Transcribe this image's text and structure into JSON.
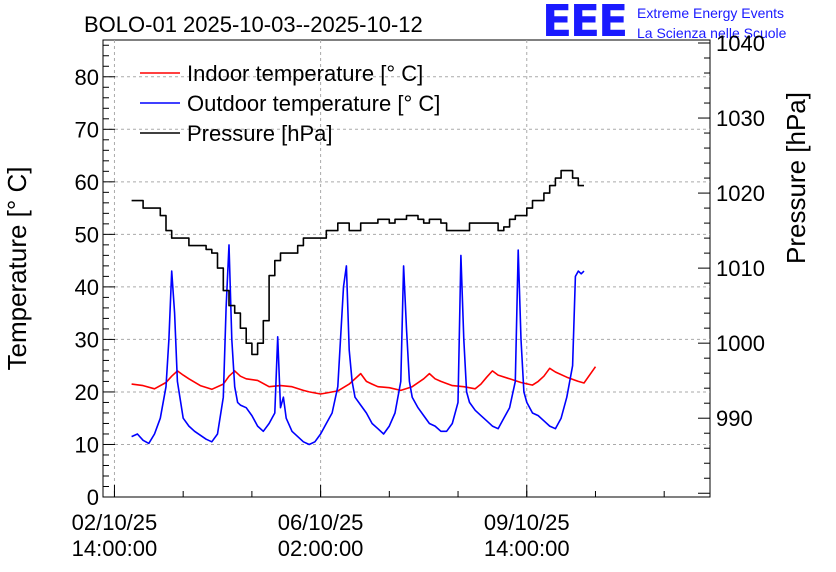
{
  "header": {
    "title": "BOLO-01 2025-10-03--2025-10-12",
    "logo_text": "EEE",
    "logo_line1": "Extreme Energy Events",
    "logo_line2": "La Scienza nelle Scuole"
  },
  "chart_data": {
    "type": "line",
    "title": "BOLO-01 2025-10-03--2025-10-12",
    "xlabel": "",
    "ylabel": "Temperature [° C]",
    "y2label": "Pressure [hPa]",
    "xlim_hours": [
      -2,
      104
    ],
    "ylim": [
      0,
      87
    ],
    "y2lim": [
      979.5,
      1040.4
    ],
    "grid": true,
    "legend_position": "top-left",
    "x_tick_labels": [
      {
        "hours": 0,
        "line1": "02/10/25",
        "line2": "14:00:00"
      },
      {
        "hours": 36,
        "line1": "06/10/25",
        "line2": "02:00:00"
      },
      {
        "hours": 72,
        "line1": "09/10/25",
        "line2": "14:00:00"
      }
    ],
    "y_ticks": [
      0,
      10,
      20,
      30,
      40,
      50,
      60,
      70,
      80
    ],
    "y2_ticks": [
      990,
      1000,
      1010,
      1020,
      1030,
      1040
    ],
    "series": [
      {
        "name": "Indoor temperature [° C]",
        "color": "#ff0000",
        "axis": "left",
        "x": [
          3,
          5,
          7,
          9,
          10,
          11,
          12,
          13,
          15,
          17,
          19,
          20,
          21,
          22,
          23,
          25,
          27,
          29,
          31,
          33,
          34,
          36,
          37,
          39,
          41,
          43,
          44,
          45,
          46,
          48,
          50,
          52,
          54,
          55,
          56,
          57,
          59,
          61,
          63,
          64,
          65,
          66,
          67,
          69,
          71,
          73,
          74,
          75,
          76,
          77,
          79,
          81,
          82,
          84
        ],
        "values": [
          21.5,
          21.2,
          20.6,
          21.8,
          23.0,
          24.0,
          23.2,
          22.5,
          21.2,
          20.5,
          21.5,
          23.0,
          24.0,
          23.0,
          22.5,
          22.2,
          21.0,
          21.2,
          21.0,
          20.3,
          20.0,
          19.6,
          19.8,
          20.2,
          21.5,
          23.5,
          22.0,
          21.5,
          21.0,
          20.8,
          20.3,
          21.0,
          22.5,
          23.5,
          22.5,
          22.0,
          21.2,
          21.0,
          20.6,
          21.5,
          22.8,
          24.0,
          23.2,
          22.5,
          21.8,
          21.3,
          22.0,
          23.0,
          24.5,
          23.8,
          22.8,
          22.0,
          21.7,
          24.8
        ]
      },
      {
        "name": "Outdoor temperature [° C]",
        "color": "#0000ff",
        "axis": "left",
        "x": [
          3,
          4,
          5,
          6,
          7,
          8,
          9,
          9.5,
          10,
          10.5,
          11,
          12,
          13,
          14,
          16,
          17,
          18,
          19,
          19.5,
          20,
          20.5,
          21,
          21.5,
          22,
          23,
          24,
          25,
          26,
          27,
          28,
          28.5,
          29,
          29.5,
          30,
          31,
          32,
          33,
          34,
          35,
          36,
          37,
          38,
          39,
          40,
          40.5,
          41,
          41.5,
          42,
          43,
          44,
          45,
          46,
          47,
          48,
          49,
          50,
          50.5,
          51,
          51.5,
          52,
          53,
          54,
          55,
          56,
          57,
          58,
          59,
          60,
          60.5,
          61,
          61.5,
          62,
          63,
          64,
          65,
          66,
          67,
          68,
          69,
          70,
          70.5,
          71,
          71.5,
          72,
          73,
          74,
          75,
          76,
          77,
          78,
          79,
          80,
          80.5,
          81,
          81.5,
          82
        ],
        "values": [
          11.5,
          12.0,
          10.8,
          10.2,
          12.0,
          15.0,
          21.0,
          30.0,
          43.0,
          35.0,
          22.0,
          15.0,
          13.5,
          12.5,
          11.0,
          10.5,
          12.0,
          19.0,
          36.0,
          48.0,
          30.0,
          21.0,
          18.0,
          17.5,
          17.0,
          15.5,
          13.5,
          12.5,
          14.0,
          16.0,
          30.5,
          17.0,
          19.0,
          15.0,
          12.5,
          11.5,
          10.5,
          10.0,
          10.5,
          12.0,
          14.0,
          16.0,
          21.0,
          40.0,
          44.0,
          28.0,
          22.0,
          19.0,
          17.5,
          16.0,
          14.0,
          13.0,
          12.0,
          13.5,
          16.0,
          22.0,
          44.0,
          32.0,
          22.0,
          19.0,
          17.0,
          15.5,
          14.0,
          13.5,
          12.5,
          12.5,
          14.0,
          18.0,
          46.0,
          30.0,
          20.0,
          18.0,
          16.5,
          15.5,
          14.5,
          13.5,
          13.0,
          15.0,
          17.0,
          22.0,
          47.0,
          30.0,
          20.0,
          18.0,
          16.0,
          15.5,
          14.5,
          13.5,
          13.0,
          15.0,
          19.0,
          25.0,
          42.0,
          43.0,
          42.5,
          43.0
        ]
      },
      {
        "name": "Pressure [hPa]",
        "color": "#000000",
        "axis": "right",
        "x": [
          3,
          4,
          5,
          6,
          7,
          8,
          9,
          10,
          11,
          12,
          13,
          14,
          15,
          16,
          17,
          18,
          19,
          20,
          21,
          22,
          23,
          24,
          25,
          26,
          27,
          28,
          29,
          30,
          31,
          32,
          33,
          34,
          35,
          36,
          37,
          38,
          39,
          40,
          41,
          42,
          43,
          44,
          45,
          46,
          47,
          48,
          49,
          50,
          51,
          52,
          53,
          54,
          55,
          56,
          57,
          58,
          59,
          60,
          61,
          62,
          63,
          64,
          65,
          66,
          67,
          68,
          69,
          70,
          71,
          72,
          73,
          74,
          75,
          76,
          77,
          78,
          79,
          80,
          81,
          82
        ],
        "values": [
          1019,
          1019,
          1018,
          1018,
          1018,
          1017,
          1015,
          1014,
          1014,
          1014,
          1013,
          1013,
          1013,
          1012.5,
          1012,
          1010,
          1007,
          1005,
          1004,
          1002,
          1000,
          998.5,
          1000,
          1003,
          1009,
          1011,
          1012,
          1012,
          1012,
          1013,
          1014,
          1014,
          1014,
          1014,
          1015,
          1015,
          1016,
          1016,
          1015,
          1015,
          1016,
          1016,
          1016,
          1016.5,
          1016.5,
          1016,
          1016.5,
          1016.5,
          1017,
          1017,
          1016.5,
          1016,
          1016.5,
          1016.5,
          1016,
          1015,
          1015,
          1015,
          1015,
          1016,
          1016,
          1016,
          1016,
          1016,
          1015,
          1015.5,
          1016.5,
          1017,
          1017,
          1018,
          1019,
          1019,
          1020,
          1021,
          1022,
          1023,
          1023,
          1022,
          1021,
          1021
        ]
      }
    ]
  }
}
